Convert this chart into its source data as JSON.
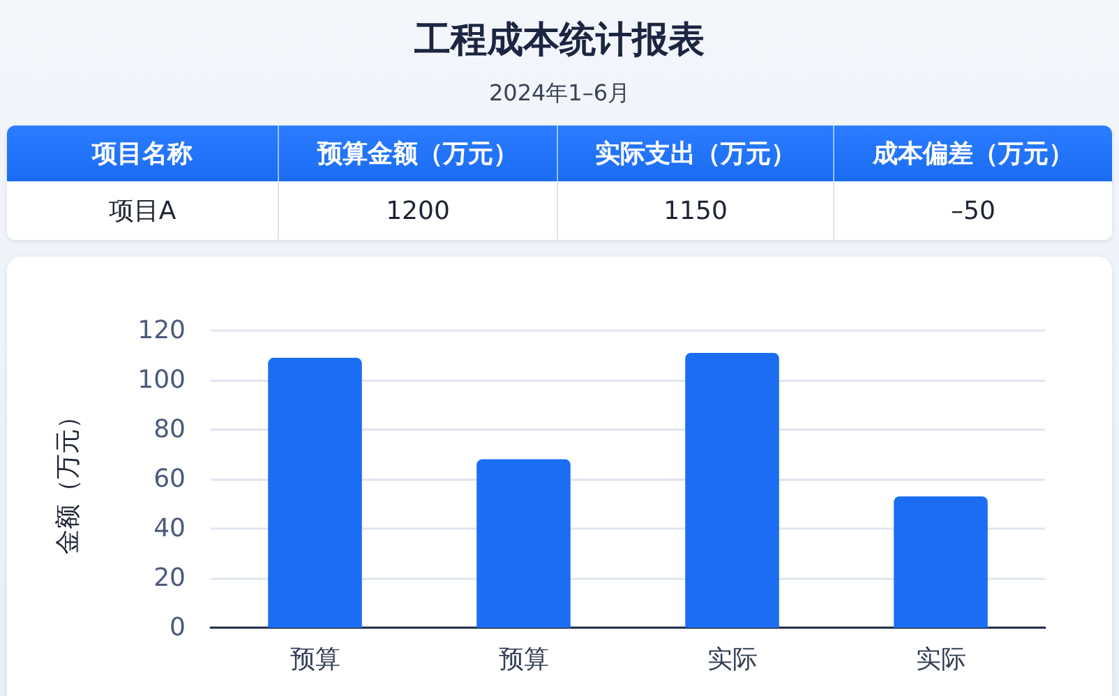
{
  "chart_data": [
    {
      "type": "other",
      "title": "工程成本统计报表",
      "subtitle": "2024年1–6月",
      "categories": [
        "项目名称",
        "预算金额（万元）",
        "实际支出（万元）",
        "成本偏差（万元）"
      ],
      "y_categories": [
        "项目A"
      ],
      "cell_labels": [
        [
          "1200",
          "1150",
          "–50"
        ]
      ]
    },
    {
      "type": "bar",
      "categories": [
        "预算",
        "预算",
        "实际",
        "实际"
      ],
      "values": [
        109,
        68,
        111,
        53
      ],
      "color": "#1b6ef3",
      "ylabel": "金额（万元）",
      "ylim": [
        0,
        120
      ],
      "yticks": [
        0,
        20,
        40,
        60,
        80,
        100,
        120
      ],
      "grid": "y"
    }
  ]
}
